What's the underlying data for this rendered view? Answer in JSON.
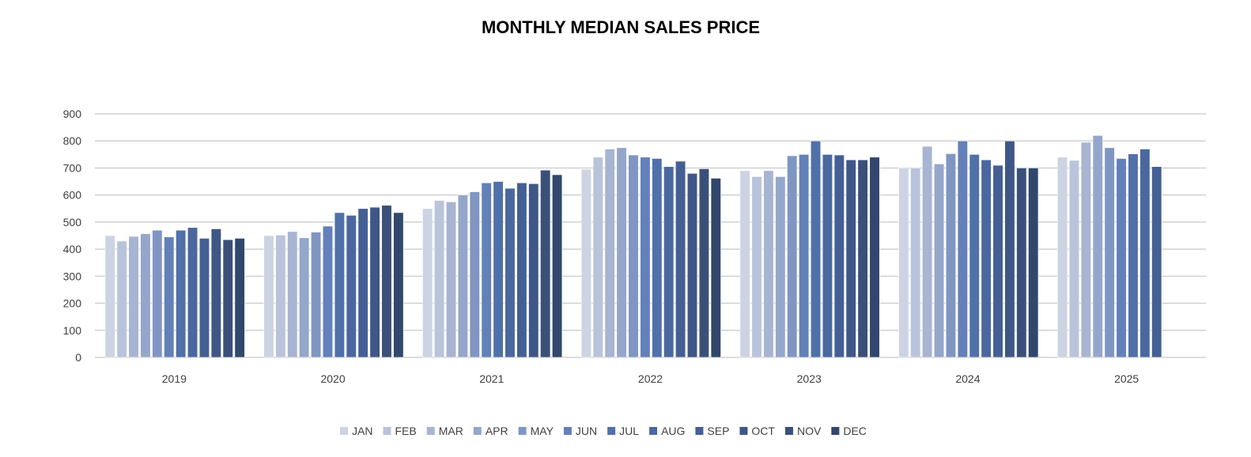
{
  "chart_data": {
    "type": "bar",
    "title": "MONTHLY MEDIAN SALES PRICE",
    "xlabel": "",
    "ylabel": "",
    "ylim": [
      0,
      900
    ],
    "yticks": [
      "0",
      "100",
      "200",
      "300",
      "400",
      "500",
      "600",
      "700",
      "800",
      "900"
    ],
    "grid": true,
    "legend_position": "bottom",
    "categories": [
      "2019",
      "2020",
      "2021",
      "2022",
      "2023",
      "2024",
      "2025"
    ],
    "series": [
      {
        "name": "JAN",
        "color": "#ccd3e3",
        "values": [
          450,
          450,
          550,
          695,
          690,
          700,
          740
        ]
      },
      {
        "name": "FEB",
        "color": "#b9c3db",
        "values": [
          430,
          452,
          580,
          740,
          668,
          700,
          728
        ]
      },
      {
        "name": "MAR",
        "color": "#a7b4d2",
        "values": [
          447,
          465,
          575,
          770,
          690,
          780,
          795
        ]
      },
      {
        "name": "APR",
        "color": "#95a6cb",
        "values": [
          457,
          442,
          600,
          775,
          668,
          715,
          820
        ]
      },
      {
        "name": "MAY",
        "color": "#8096c2",
        "values": [
          470,
          463,
          612,
          748,
          745,
          753,
          775
        ]
      },
      {
        "name": "JUN",
        "color": "#6380b8",
        "values": [
          445,
          485,
          645,
          740,
          750,
          800,
          735
        ]
      },
      {
        "name": "JUL",
        "color": "#5070a9",
        "values": [
          470,
          535,
          650,
          735,
          800,
          750,
          752
        ]
      },
      {
        "name": "AUG",
        "color": "#4a689f",
        "values": [
          480,
          525,
          625,
          705,
          750,
          730,
          770
        ]
      },
      {
        "name": "SEP",
        "color": "#445f93",
        "values": [
          440,
          550,
          645,
          725,
          748,
          710,
          705
        ]
      },
      {
        "name": "OCT",
        "color": "#3f5786",
        "values": [
          475,
          555,
          642,
          680,
          730,
          800,
          null
        ]
      },
      {
        "name": "NOV",
        "color": "#3a5079",
        "values": [
          435,
          562,
          692,
          697,
          730,
          700,
          null
        ]
      },
      {
        "name": "DEC",
        "color": "#31476c",
        "values": [
          440,
          535,
          675,
          662,
          740,
          700,
          null
        ]
      }
    ]
  }
}
